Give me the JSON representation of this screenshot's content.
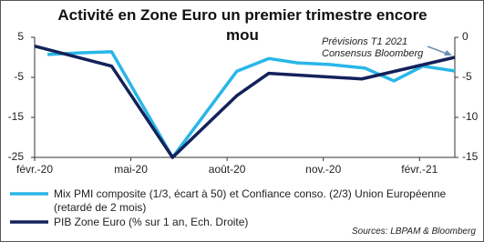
{
  "chart_data": {
    "type": "line",
    "title": "Activité en Zone Euro un premier trimestre encore mou",
    "xlim": [
      0,
      13.1
    ],
    "xticks": [
      {
        "value": 0,
        "label": "févr.-20"
      },
      {
        "value": 3,
        "label": "mai-20"
      },
      {
        "value": 6,
        "label": "août-20"
      },
      {
        "value": 9,
        "label": "nov.-20"
      },
      {
        "value": 12,
        "label": "févr.-21"
      }
    ],
    "ylim": [
      -25,
      5
    ],
    "yticks": [
      5,
      -5,
      -15,
      -25
    ],
    "y2lim": [
      -15,
      0
    ],
    "y2ticks": [
      0,
      -5,
      -10,
      -15
    ],
    "series": [
      {
        "name": "Mix PMI composite (1/3, écart à 50) et Confiance conso. (2/3) Union Européenne (retardé de 2 mois)",
        "color": "#29b6e8",
        "x": [
          0.4,
          1.4,
          2.4,
          4.3,
          6.3,
          7.3,
          8.2,
          9.2,
          10.3,
          11.2,
          12.1,
          13.1
        ],
        "values": [
          0.7,
          1.1,
          1.4,
          -25,
          -3.5,
          -0.3,
          -1.4,
          -1.8,
          -2.7,
          -5.9,
          -2.2,
          -3.4
        ]
      },
      {
        "name": "PIB Zone Euro (% sur 1 an, Ech. Droite)",
        "color": "#14215a",
        "axis": "y2",
        "x": [
          0,
          2.4,
          4.3,
          6.3,
          7.3,
          10.2,
          13.1
        ],
        "values": [
          -1.1,
          -3.6,
          -15,
          -7.3,
          -4.5,
          -5.2,
          -2.5
        ]
      }
    ],
    "annotations": [
      "Prévisions T1 2021",
      "Consensus Bloomberg"
    ],
    "source": "Sources: LBPAM & Bloomberg"
  }
}
